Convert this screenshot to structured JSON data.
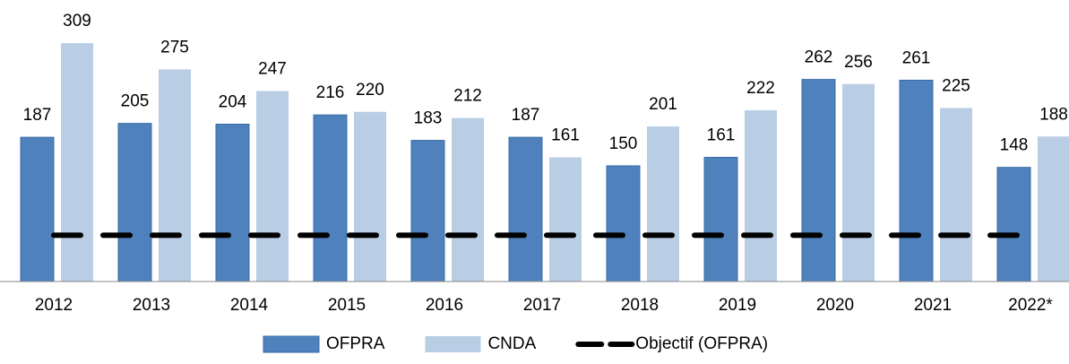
{
  "chart_data": {
    "type": "bar",
    "categories": [
      "2012",
      "2013",
      "2014",
      "2015",
      "2016",
      "2017",
      "2018",
      "2019",
      "2020",
      "2021",
      "2022*"
    ],
    "series": [
      {
        "name": "OFPRA",
        "color": "#4f81bd",
        "values": [
          187,
          205,
          204,
          216,
          183,
          187,
          150,
          161,
          262,
          261,
          148
        ]
      },
      {
        "name": "CNDA",
        "color": "#b9cde5",
        "values": [
          309,
          275,
          247,
          220,
          212,
          161,
          201,
          222,
          256,
          225,
          188
        ]
      },
      {
        "name": "Objectif (OFPRA)",
        "type": "line",
        "color": "#000000",
        "dashed": true,
        "values": [
          60,
          60,
          60,
          60,
          60,
          60,
          60,
          60,
          60,
          60,
          60
        ]
      }
    ],
    "ylim": [
      0,
      365
    ]
  }
}
